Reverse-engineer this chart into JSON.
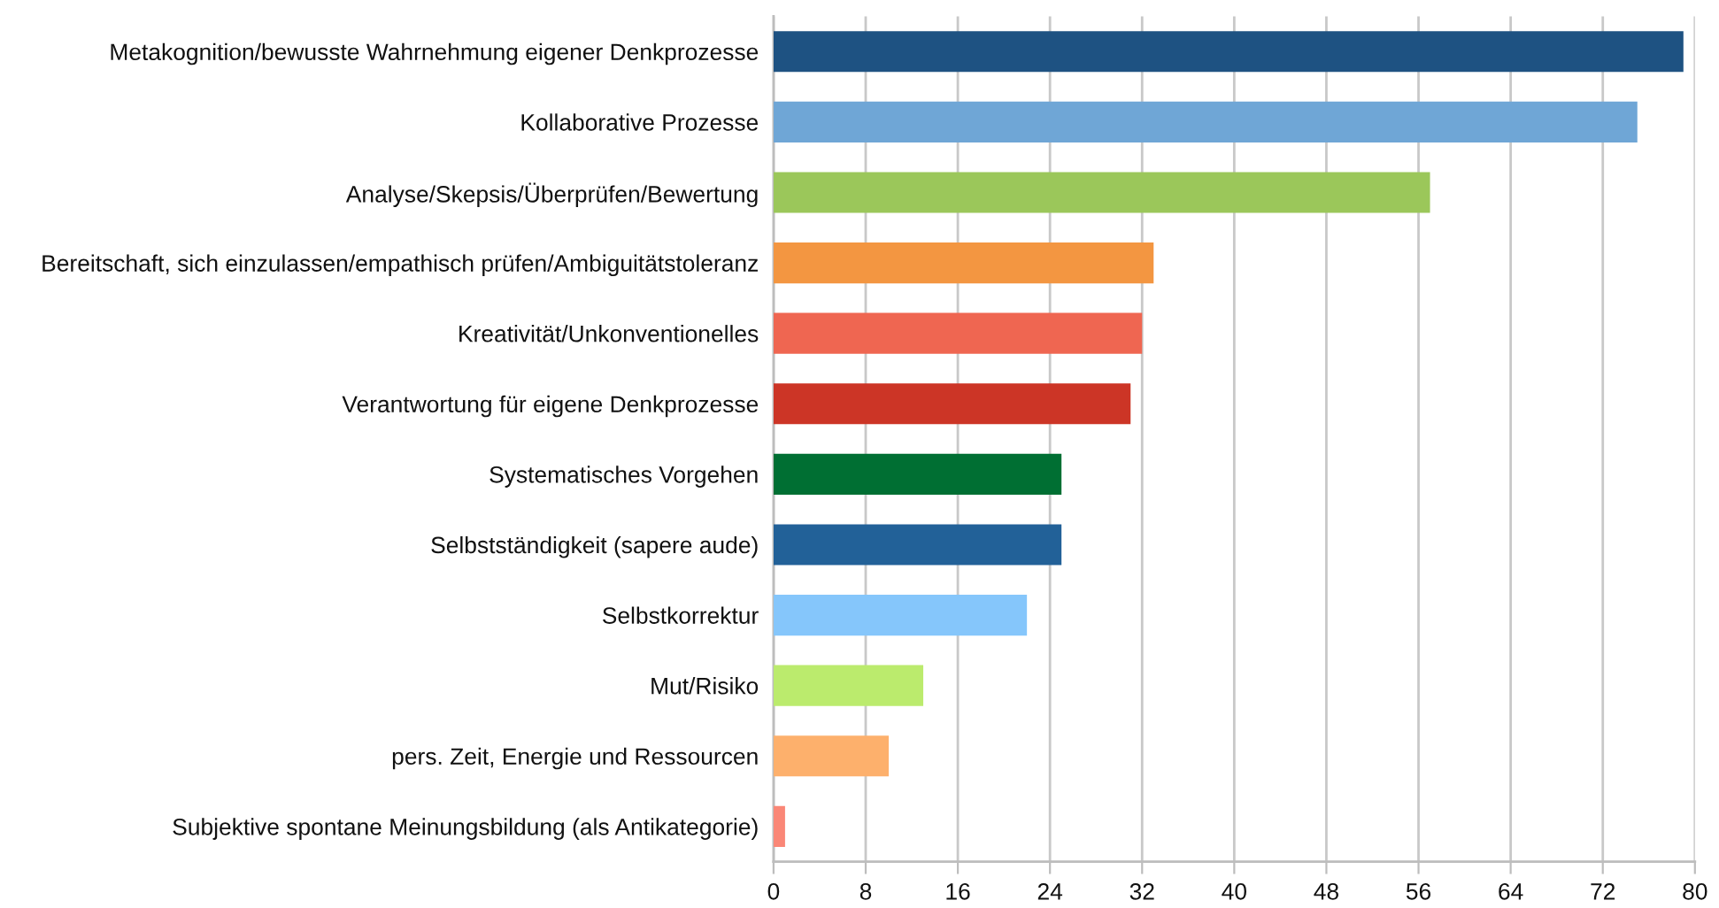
{
  "chart_data": {
    "type": "bar",
    "orientation": "horizontal",
    "categories": [
      "Metakognition/bewusste Wahrnehmung eigener Denkprozesse",
      "Kollaborative Prozesse",
      "Analyse/Skepsis/Überprüfen/Bewertung",
      "Bereitschaft, sich einzulassen/empathisch prüfen/Ambiguitätstoleranz",
      "Kreativität/Unkonventionelles",
      "Verantwortung für eigene Denkprozesse",
      "Systematisches Vorgehen",
      "Selbstständigkeit (sapere aude)",
      "Selbstkorrektur",
      "Mut/Risiko",
      "pers. Zeit, Energie und Ressourcen",
      "Subjektive spontane Meinungsbildung (als Antikategorie)"
    ],
    "values": [
      79,
      75,
      57,
      33,
      32,
      31,
      25,
      25,
      22,
      13,
      10,
      1
    ],
    "colors": [
      "#1e5282",
      "#6fa6d6",
      "#9bc75a",
      "#f39641",
      "#ef6651",
      "#cc3526",
      "#006f33",
      "#226198",
      "#85c6fb",
      "#bbeb6d",
      "#fdb06c",
      "#fa8777"
    ],
    "xlim": [
      0,
      80
    ],
    "xticks": [
      0,
      8,
      16,
      24,
      32,
      40,
      48,
      56,
      64,
      72,
      80
    ],
    "grid": "x"
  }
}
